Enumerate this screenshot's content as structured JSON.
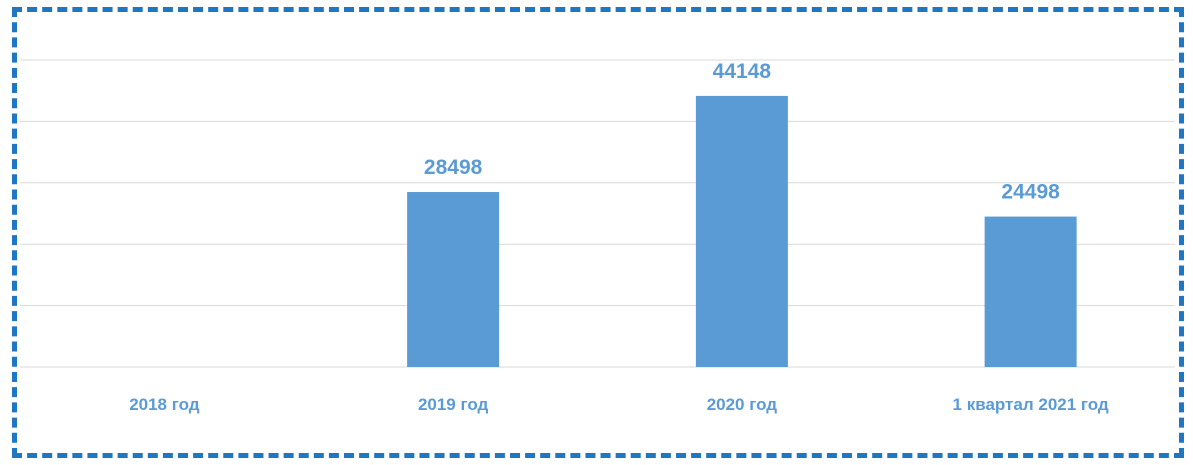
{
  "chart_data": {
    "type": "bar",
    "title": "",
    "xlabel": "",
    "ylabel": "",
    "categories": [
      "2018 год",
      "2019 год",
      "2020 год",
      "1 квартал 2021 год"
    ],
    "values": [
      0,
      28498,
      44148,
      24498
    ],
    "data_labels": [
      "",
      "28498",
      "44148",
      "24498"
    ],
    "ylim": [
      0,
      50000
    ],
    "y_gridline_step": 10000,
    "grid": true,
    "legend": "none",
    "colors": {
      "bar": "#5b9bd5",
      "label": "#5b9bd5",
      "gridline": "#d9d9d9",
      "frame": "#1f77c4"
    }
  }
}
